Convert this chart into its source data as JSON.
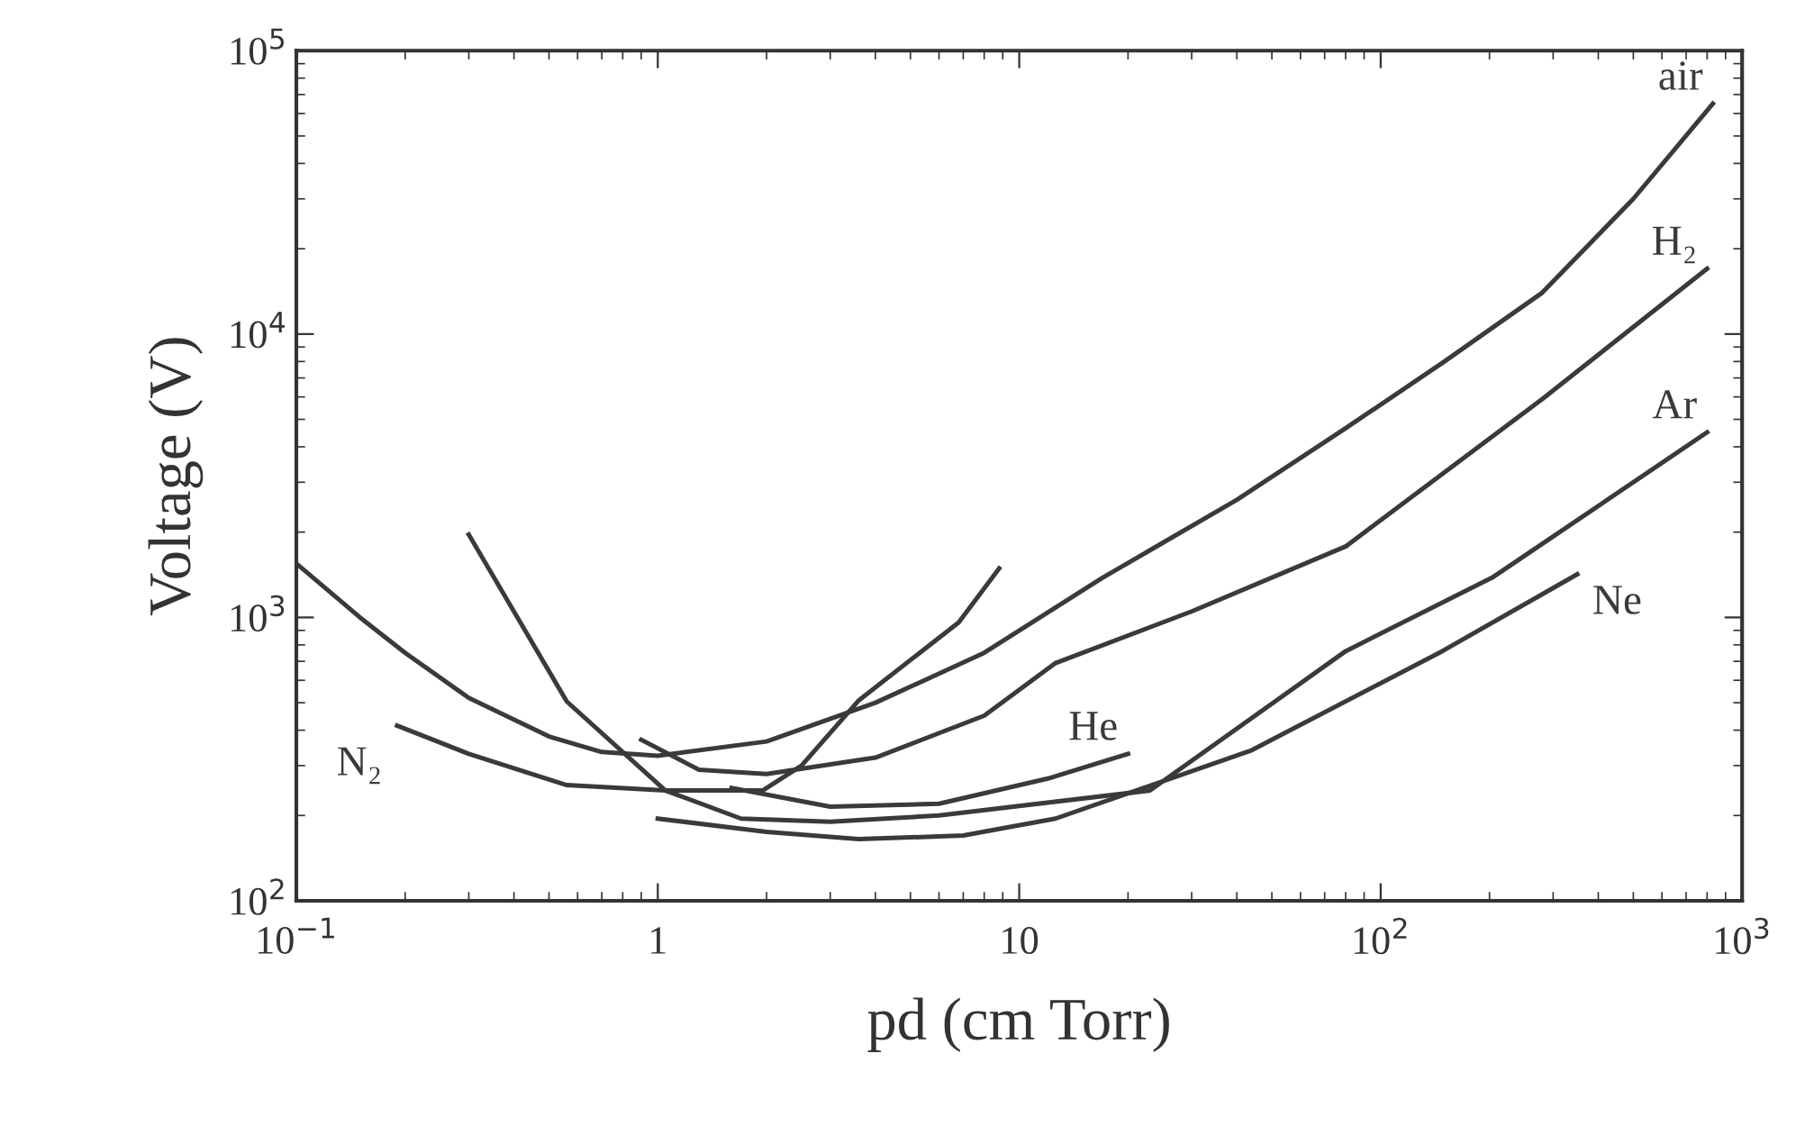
{
  "chart_data": {
    "type": "line",
    "xlabel": "pd (cm Torr)",
    "ylabel": "Voltage (V)",
    "log": "xy",
    "grid": false,
    "legend": "right",
    "marker": "none",
    "line_style": "solid",
    "xlim": [
      0.1,
      1000
    ],
    "ylim": [
      100,
      100000
    ],
    "xticks": [
      {
        "value": 0.1,
        "label": "10$^{−1}$"
      },
      1,
      10,
      {
        "value": 100,
        "label": "10$^{2}$"
      },
      {
        "value": 1000,
        "label": "10$^{3}$"
      }
    ],
    "yticks": [
      {
        "value": 100,
        "label": "10$^{2}$"
      },
      {
        "value": 1000,
        "label": "10$^{3}$"
      },
      {
        "value": 10000,
        "label": "10$^{4}$"
      },
      {
        "value": 100000,
        "label": "10$^{5}$"
      }
    ],
    "series": [
      {
        "name": "air",
        "color": "#3a3a3a",
        "x": [
          0.1,
          0.15,
          0.2,
          0.3,
          0.5,
          0.7,
          1,
          2,
          4,
          8,
          17,
          40,
          80,
          150,
          280,
          500,
          830
        ],
        "values": [
          1550,
          1000,
          750,
          520,
          380,
          335,
          325,
          365,
          500,
          750,
          1380,
          2600,
          4650,
          8000,
          14000,
          30000,
          65000
        ]
      },
      {
        "name": "N₂",
        "color": "#3a3a3a",
        "x": [
          8.8,
          6.8,
          3.6,
          2.5,
          1.95,
          1.05,
          0.56,
          0.3,
          0.19
        ],
        "values": [
          1490,
          960,
          510,
          300,
          245,
          245,
          256,
          330,
          415
        ]
      },
      {
        "name": "H₂",
        "color": "#3a3a3a",
        "x": [
          0.9,
          1.3,
          2,
          4,
          8,
          12.6,
          30,
          80,
          280,
          800
        ],
        "values": [
          370,
          290,
          280,
          320,
          450,
          690,
          1050,
          1780,
          5900,
          17000
        ]
      },
      {
        "name": "Ar",
        "color": "#3a3a3a",
        "x": [
          0.3,
          0.56,
          1.05,
          1.7,
          3,
          6,
          23,
          80,
          205,
          800
        ],
        "values": [
          1960,
          505,
          245,
          195,
          190,
          200,
          245,
          760,
          1390,
          4500
        ]
      },
      {
        "name": "Ne",
        "color": "#3a3a3a",
        "x": [
          1.0,
          2,
          3.6,
          7,
          12.6,
          44,
          148,
          350
        ],
        "values": [
          195,
          175,
          165,
          170,
          195,
          340,
          760,
          1420
        ]
      },
      {
        "name": "He",
        "color": "#3a3a3a",
        "x": [
          1.6,
          3,
          6,
          12,
          20
        ],
        "values": [
          250,
          215,
          220,
          270,
          330
        ]
      }
    ]
  }
}
